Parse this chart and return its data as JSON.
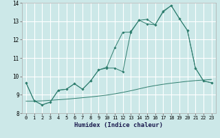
{
  "title": "",
  "xlabel": "Humidex (Indice chaleur)",
  "bg_color": "#cce8e8",
  "grid_color": "#ffffff",
  "line_color": "#2e7d6e",
  "xlim": [
    -0.5,
    23.5
  ],
  "ylim": [
    8,
    14
  ],
  "yticks": [
    8,
    9,
    10,
    11,
    12,
    13,
    14
  ],
  "xticks": [
    0,
    1,
    2,
    3,
    4,
    5,
    6,
    7,
    8,
    9,
    10,
    11,
    12,
    13,
    14,
    15,
    16,
    17,
    18,
    19,
    20,
    21,
    22,
    23
  ],
  "series1_x": [
    0,
    1,
    2,
    3,
    4,
    5,
    6,
    7,
    8,
    9,
    10,
    11,
    12,
    13,
    14,
    15,
    16,
    17,
    18,
    19,
    20,
    21,
    22,
    23
  ],
  "series1_y": [
    9.65,
    8.68,
    8.45,
    8.6,
    9.25,
    9.3,
    9.6,
    9.3,
    9.75,
    10.35,
    10.45,
    10.45,
    10.25,
    12.45,
    13.05,
    12.85,
    12.8,
    13.5,
    13.85,
    13.15,
    12.5,
    10.45,
    9.75,
    9.65
  ],
  "series2_x": [
    0,
    1,
    2,
    3,
    4,
    5,
    6,
    7,
    8,
    9,
    10,
    11,
    12,
    13,
    14,
    15,
    16,
    17,
    18,
    19,
    20,
    21,
    22,
    23
  ],
  "series2_y": [
    9.65,
    8.68,
    8.45,
    8.6,
    9.25,
    9.3,
    9.6,
    9.3,
    9.75,
    10.35,
    10.5,
    11.55,
    12.4,
    12.4,
    13.05,
    13.1,
    12.8,
    13.55,
    13.85,
    13.15,
    12.5,
    10.45,
    9.75,
    9.65
  ],
  "series3_x": [
    0,
    1,
    2,
    3,
    4,
    5,
    6,
    7,
    8,
    9,
    10,
    11,
    12,
    13,
    14,
    15,
    16,
    17,
    18,
    19,
    20,
    21,
    22,
    23
  ],
  "series3_y": [
    8.65,
    8.65,
    8.67,
    8.7,
    8.73,
    8.76,
    8.8,
    8.84,
    8.88,
    8.93,
    8.98,
    9.05,
    9.13,
    9.22,
    9.32,
    9.42,
    9.5,
    9.57,
    9.63,
    9.68,
    9.73,
    9.77,
    9.8,
    9.83
  ]
}
